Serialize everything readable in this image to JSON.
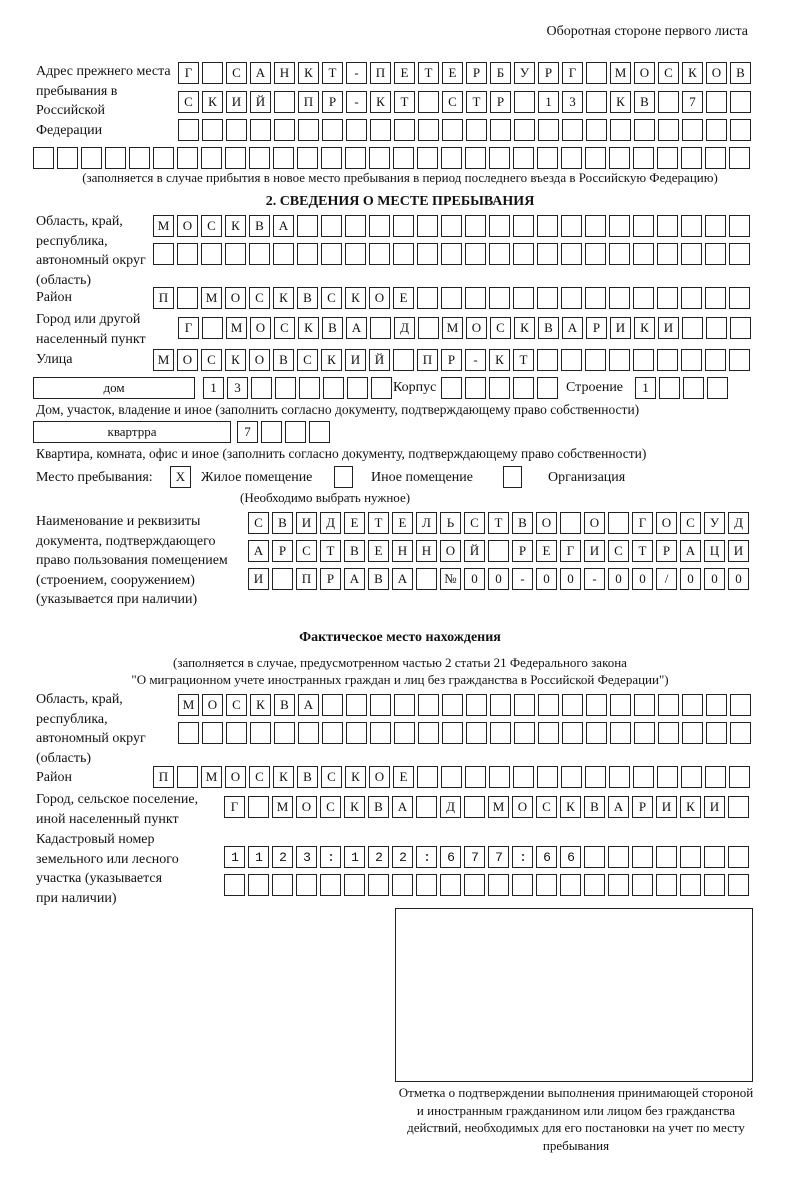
{
  "header": "Оборотная стороне первого листа",
  "prev_address": {
    "label": "Адрес прежнего места пребывания в Российской Федерации",
    "rows": [
      "Г САНКТ-ПЕТЕРБУРГ МОСКОВ",
      "СКИЙ ПР-КТ СТР 13 КВ 7  ",
      "                        ",
      "                              "
    ],
    "note": "(заполняется в случае прибытия в новое место пребывания в период последнего въезда в Российскую Федерацию)"
  },
  "section2": {
    "title": "2. СВЕДЕНИЯ О МЕСТЕ ПРЕБЫВАНИЯ",
    "region_label": "Область, край, республика, автономный округ (область)",
    "region_rows": [
      "МОСКВА                   ",
      "                         "
    ],
    "district_label": "Район",
    "district_row": "П МОСКВСКОЕ              ",
    "city_label": "Город или другой населенный пункт",
    "city_row": "Г МОСКВА Д МОСКВАРИКИ   ",
    "street_label": "Улица",
    "street_row": "МОСКОВСКИЙ ПР-КТ         ",
    "house_type": "дом",
    "house_row": "13      ",
    "korpus_label": "Корпус",
    "korpus_row": "     ",
    "building_label": "Строение",
    "building_row": "1   ",
    "house_note": "Дом, участок, владение и иное (заполнить согласно документу, подтверждающему право собственности)",
    "apt_type": "квартрра",
    "apt_row": "7   ",
    "apt_note": "Квартира, комната, офис и иное (заполнить согласно документу, подтверждающему право собственности)",
    "stay_label": "Место пребывания:",
    "stay_options": [
      {
        "label": "Жилое помещение",
        "mark": "X"
      },
      {
        "label": "Иное помещение",
        "mark": ""
      },
      {
        "label": "Организация",
        "mark": ""
      }
    ],
    "stay_note": "(Необходимо выбрать нужное)",
    "doc_label": "Наименование и реквизиты документа, подтверждающего право пользования помещением (строением, сооружением) (указывается при наличии)",
    "doc_rows": [
      "СВИДЕТЕЛЬСТВО О ГОСУД",
      "АРСТВЕННОЙ РЕГИСТРАЦИ",
      "И ПРАВА №00-00-00/000"
    ]
  },
  "actual": {
    "title": "Фактическое место нахождения",
    "note1": "(заполняется в случае, предусмотренном частью 2 статьи 21 Федерального закона",
    "note2": "\"О миграционном учете иностранных граждан и лиц без гражданства в Российской Федерации\")",
    "region_label": "Область, край, республика, автономный округ (область)",
    "region_rows": [
      "МОСКВА                  ",
      "                        "
    ],
    "district_label": "Район",
    "district_row": "П МОСКВСКОЕ              ",
    "city_label": "Город, сельское поселение, иной населенный пункт",
    "city_row": "Г МОСКВА Д МОСКВАРИКИ ",
    "cadastral_label": "Кадастровый номер земельного или лесного участка (указывается при наличии)",
    "cadastral_rows": [
      "1123:122:677:66       ",
      "                      "
    ]
  },
  "stamp_caption": "Отметка о подтверждении выполнения принимающей стороной и иностранным гражданином или лицом без гражданства действий, необходимых для его постановки на учет по месту пребывания"
}
